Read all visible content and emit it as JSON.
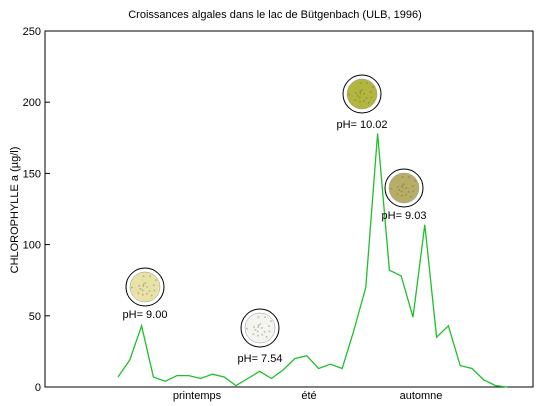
{
  "chart_data": {
    "type": "line",
    "title": "Croissances algales dans le lac de Bütgenbach (ULB, 1996)",
    "ylabel": "CHLOROPHYLLE a (µg/l)",
    "xlabel": "",
    "ylim": [
      0,
      250
    ],
    "yticks": [
      "0",
      "50",
      "100",
      "150",
      "200",
      "250"
    ],
    "seasons": [
      "printemps",
      "été",
      "automne"
    ],
    "grid": false,
    "line_color": "#1fbf2a",
    "series": [
      {
        "values": [
          7,
          19,
          43,
          7,
          4,
          8,
          8,
          6,
          9,
          7,
          1,
          6,
          11,
          6,
          12,
          20,
          22,
          13,
          16,
          13,
          40,
          70,
          178,
          82,
          78,
          49,
          114,
          35,
          43,
          15,
          13,
          5,
          1,
          0
        ]
      }
    ],
    "annotations": [
      {
        "label": "pH= 9.00",
        "index": 2,
        "sample_color": "#e9e2a6"
      },
      {
        "label": "pH= 7.54",
        "index": 12,
        "sample_color": "#f4f4f0"
      },
      {
        "label": "pH= 10.02",
        "index": 22,
        "sample_color": "#b3b63e"
      },
      {
        "label": "pH= 9.03",
        "index": 26,
        "sample_color": "#b8ad66"
      }
    ]
  }
}
